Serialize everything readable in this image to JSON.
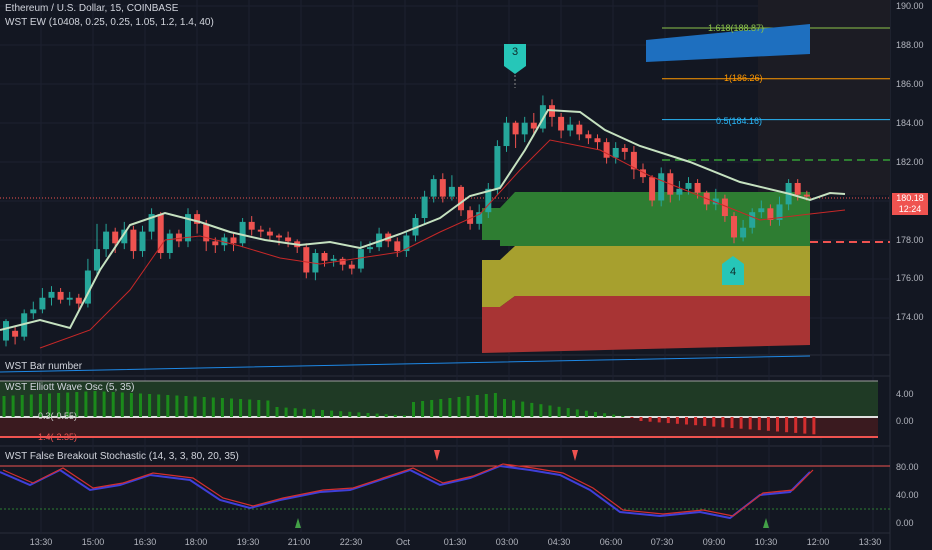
{
  "header": {
    "title": "Ethereum / U.S. Dollar, 15, COINBASE",
    "indicator_main": "WST EW (10408, 0.25, 0.25, 1.05, 1.2, 1.4, 40)",
    "panel_bar_number": "WST Bar number",
    "panel_osc": "WST Elliott Wave Osc (5, 35)",
    "panel_stoch": "WST False Breakout Stochastic (14, 3, 3, 80, 20, 35)"
  },
  "price_axis": {
    "ticks": [
      "190.00",
      "188.00",
      "186.00",
      "184.00",
      "182.00",
      "178.00",
      "176.00",
      "174.00"
    ],
    "current_price": "180.18",
    "countdown": "12:24"
  },
  "fib_levels": [
    "1.618(188.87)",
    "1(186.26)",
    "0.5(184.16)"
  ],
  "wave_labels": {
    "wave3": "3",
    "wave4": "4"
  },
  "osc_axis": {
    "ticks": [
      "4.00",
      "0.00"
    ],
    "labels": [
      "0.3(-0.55)",
      "1.4(-2.35)"
    ]
  },
  "stoch_axis": {
    "ticks": [
      "80.00",
      "40.00",
      "0.00"
    ]
  },
  "time_axis": [
    "13:30",
    "15:00",
    "16:30",
    "18:00",
    "19:30",
    "21:00",
    "22:30",
    "Oct",
    "01:30",
    "03:00",
    "04:30",
    "06:00",
    "07:30",
    "09:00",
    "10:30",
    "12:00",
    "13:30"
  ],
  "colors": {
    "bg": "#131722",
    "up": "#26a69a",
    "down": "#ef5350",
    "ma": "#c5e1c0",
    "osc_up": "#1b8a1b",
    "osc_down": "#d32f2f",
    "stoch_k": "#d32f2f",
    "stoch_d": "#3f3fd8",
    "box_green": "#2e7d32",
    "box_yellow": "#a7a02e",
    "box_red": "#a83434"
  },
  "icons": {
    "wave_marker": "teal-pentagon-marker",
    "down_arrow": "red-down-arrow-icon",
    "up_arrow": "green-up-arrow-icon"
  }
}
